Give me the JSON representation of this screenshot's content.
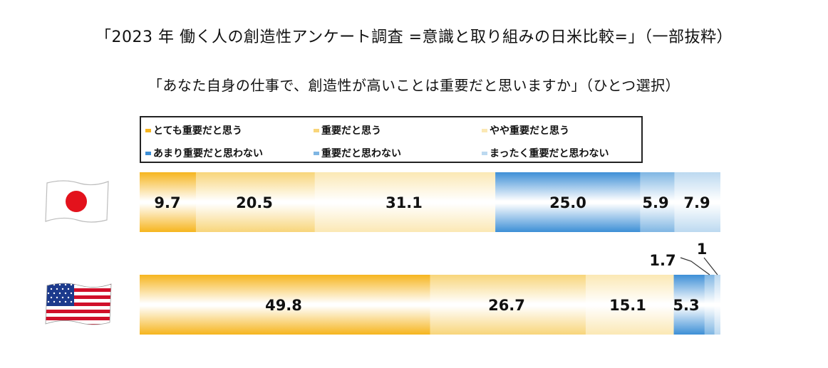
{
  "title": "「2023 年  働く人の創造性アンケート調査  =意識と取り組みの日米比較=」（一部抜粋）",
  "subtitle": "「あなた自身の仕事で、創造性が高いことは重要だと思いますか」（ひとつ選択）",
  "legend": [
    {
      "label": "とても重要だと思う",
      "color": "#f6b51e"
    },
    {
      "label": "重要だと思う",
      "color": "#f8d57a"
    },
    {
      "label": "やや重要だと思う",
      "color": "#fbe8b4"
    },
    {
      "label": "あまり重要だと思わない",
      "color": "#3d8fd6"
    },
    {
      "label": "重要だと思わない",
      "color": "#7fb6e3"
    },
    {
      "label": "まったく重要だと思わない",
      "color": "#bcd9f0"
    }
  ],
  "flags": {
    "jp": "japan-flag-icon",
    "us": "usa-flag-icon"
  },
  "chart_data": {
    "type": "bar",
    "orientation": "horizontal-stacked-100",
    "title": "「あなた自身の仕事で、創造性が高いことは重要だと思いますか」（ひとつ選択）",
    "categories": [
      "とても重要だと思う",
      "重要だと思う",
      "やや重要だと思う",
      "あまり重要だと思わない",
      "重要だと思わない",
      "まったく重要だと思わない"
    ],
    "series": [
      {
        "values": [
          9.7,
          20.5,
          31.1,
          25.0,
          5.9,
          7.9
        ]
      },
      {
        "values": [
          49.8,
          26.7,
          15.1,
          5.3,
          1.7,
          1
        ]
      }
    ],
    "value_labels": [
      [
        "9.7",
        "20.5",
        "31.1",
        "25.0",
        "5.9",
        "7.9"
      ],
      [
        "49.8",
        "26.7",
        "15.1",
        "5.3",
        "1.7",
        "1"
      ]
    ],
    "colors": [
      "#f6b51e",
      "#f8d57a",
      "#fbe8b4",
      "#3d8fd6",
      "#7fb6e3",
      "#bcd9f0"
    ],
    "xlim": [
      0,
      100
    ],
    "legend_position": "top",
    "grid": false
  }
}
